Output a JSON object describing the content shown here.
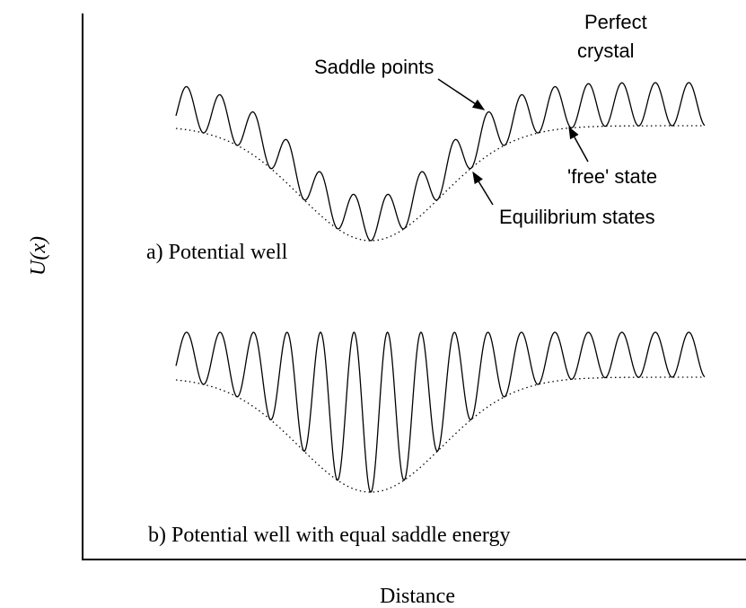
{
  "axes": {
    "y_label": "U(x)",
    "x_label": "Distance"
  },
  "panel_a": {
    "label": "a) Potential well",
    "annotations": {
      "saddle": "Saddle points",
      "perfect_1": "Perfect",
      "perfect_2": "crystal",
      "free": "'free' state",
      "equilibrium": "Equilibrium states"
    }
  },
  "panel_b": {
    "label": "b) Potential well with equal saddle energy"
  }
}
